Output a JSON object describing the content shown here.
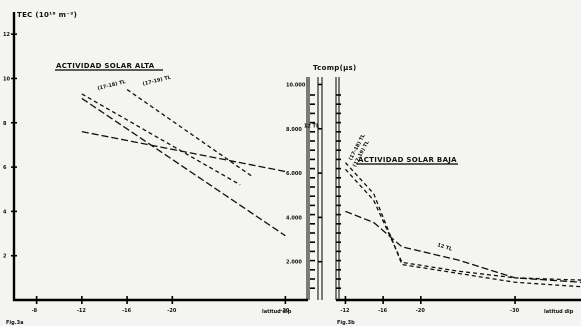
{
  "chart_data": [
    {
      "type": "line",
      "title": "ACTIVIDAD SOLAR ALTA",
      "ylabel": "TEC (10¹⁶ m⁻²)",
      "xlabel": "latitud dip",
      "figure_label": "Fig.3a",
      "x_tick_labels": [
        "-8",
        "-12",
        "-16",
        "-20",
        "-30"
      ],
      "y_tick_labels": [
        "2",
        "4",
        "6",
        "8",
        "10",
        "12"
      ],
      "xlim": [
        -6,
        -32
      ],
      "ylim": [
        0,
        13
      ],
      "series": [
        {
          "name": "(17-18) TL",
          "style": "short-dash",
          "x": [
            -12,
            -26
          ],
          "y": [
            9.3,
            5.2
          ]
        },
        {
          "name": "(17-19) TL",
          "style": "short-dash",
          "x": [
            -16,
            -27
          ],
          "y": [
            9.5,
            5.6
          ]
        },
        {
          "name": "12 TL",
          "style": "long-dash",
          "x": [
            -12,
            -30
          ],
          "y": [
            7.6,
            5.8
          ]
        },
        {
          "name": "",
          "style": "long-dash",
          "x": [
            -12,
            -30
          ],
          "y": [
            9.1,
            2.9
          ]
        }
      ]
    },
    {
      "type": "line",
      "title": "ACTIVIDAD SOLAR BAJA",
      "xlabel": "latitud dip",
      "figure_label": "Fig.3b",
      "x_tick_labels": [
        "-12",
        "-16",
        "-20",
        "-30"
      ],
      "y_tick_labels": [
        "2.000",
        "4.000",
        "6.000",
        "8.000",
        "10.000"
      ],
      "xlim": [
        -11,
        -37
      ],
      "ylim": [
        0,
        13
      ],
      "series": [
        {
          "name": "(17-18) TL",
          "style": "short-dash",
          "x": [
            -12,
            -15,
            -18,
            -24,
            -30,
            -37
          ],
          "y": [
            6.2,
            4.8,
            1.6,
            1.2,
            0.8,
            0.6
          ]
        },
        {
          "name": "(17-19) TL",
          "style": "short-dash",
          "x": [
            -12,
            -15,
            -18,
            -24,
            -30,
            -37
          ],
          "y": [
            5.9,
            4.5,
            1.7,
            1.3,
            1.0,
            0.9
          ]
        },
        {
          "name": "12 TL",
          "style": "long-dash",
          "x": [
            -12,
            -15,
            -18,
            -24,
            -30,
            -37
          ],
          "y": [
            4.0,
            3.5,
            2.4,
            1.8,
            1.0,
            0.8
          ]
        }
      ]
    }
  ],
  "center_scale_label": "Tcomp(μs)"
}
